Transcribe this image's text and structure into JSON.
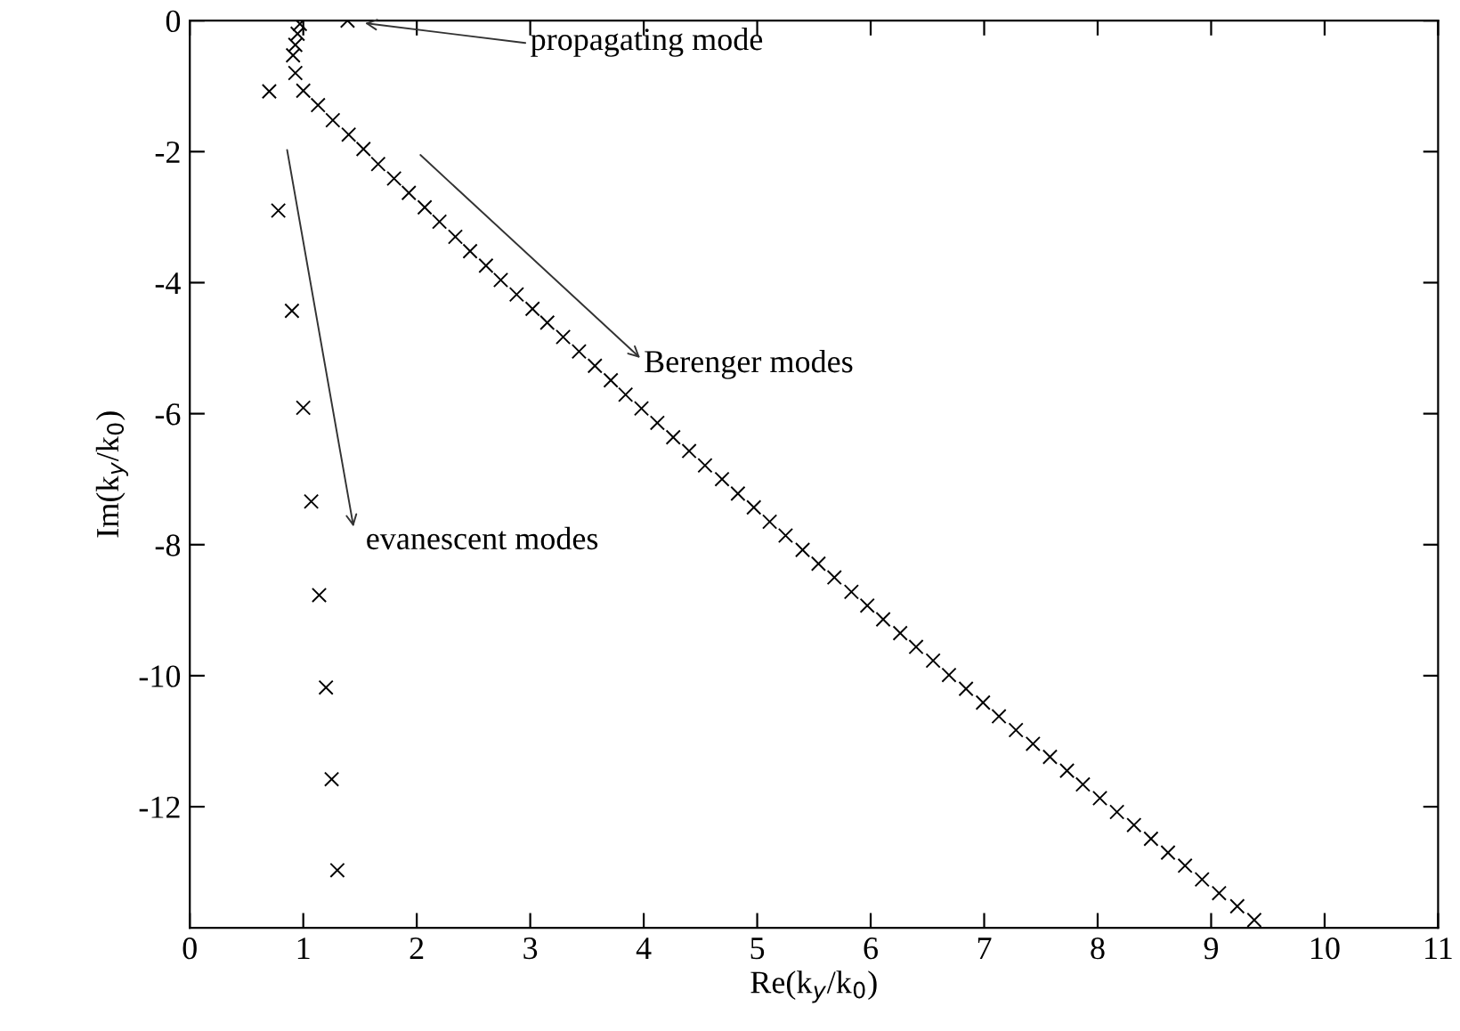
{
  "chart_data": {
    "type": "scatter",
    "xlabel": "Re(k$_{y}$/k$_{0}$)",
    "ylabel": "Im(k$_{y}$/k$_{0}$)",
    "xlim": [
      0,
      11
    ],
    "ylim": [
      -13.85,
      0
    ],
    "xticks": [
      0,
      1,
      2,
      3,
      4,
      5,
      6,
      7,
      8,
      9,
      10,
      11
    ],
    "yticks": [
      {
        "value": 0,
        "label": "0"
      },
      {
        "value": -2,
        "label": "-2"
      },
      {
        "value": -4,
        "label": "-4"
      },
      {
        "value": -6,
        "label": "-6"
      },
      {
        "value": -8,
        "label": "-8"
      },
      {
        "value": -10,
        "label": "-10"
      },
      {
        "value": -12,
        "label": "-12"
      }
    ],
    "grid": false,
    "legend": false,
    "marker": "cross",
    "series": [
      {
        "color": "#000000",
        "x": [
          1.39,
          0.97,
          0.95,
          0.93,
          0.91,
          0.93,
          1.0,
          1.13,
          1.26,
          1.4,
          1.53,
          1.66,
          1.8,
          1.93,
          2.07,
          2.2,
          2.34,
          2.47,
          2.61,
          2.74,
          2.88,
          3.02,
          3.15,
          3.29,
          3.43,
          3.57,
          3.71,
          3.84,
          3.98,
          4.12,
          4.26,
          4.4,
          4.54,
          4.69,
          4.83,
          4.97,
          5.11,
          5.25,
          5.4,
          5.54,
          5.68,
          5.83,
          5.97,
          6.11,
          6.26,
          6.4,
          6.55,
          6.69,
          6.84,
          6.99,
          7.13,
          7.28,
          7.43,
          7.58,
          7.73,
          7.87,
          8.02,
          8.17,
          8.32,
          8.47,
          8.62,
          8.77,
          8.92,
          9.07,
          9.23,
          9.38
        ],
        "values": [
          0,
          -0.05,
          -0.2,
          -0.37,
          -0.53,
          -0.8,
          -1.07,
          -1.29,
          -1.52,
          -1.74,
          -1.96,
          -2.19,
          -2.41,
          -2.63,
          -2.85,
          -3.07,
          -3.3,
          -3.52,
          -3.74,
          -3.96,
          -4.18,
          -4.4,
          -4.61,
          -4.83,
          -5.05,
          -5.27,
          -5.49,
          -5.71,
          -5.92,
          -6.14,
          -6.36,
          -6.57,
          -6.79,
          -7.0,
          -7.22,
          -7.43,
          -7.65,
          -7.86,
          -8.08,
          -8.29,
          -8.5,
          -8.72,
          -8.93,
          -9.14,
          -9.35,
          -9.56,
          -9.77,
          -9.99,
          -10.2,
          -10.41,
          -10.62,
          -10.83,
          -11.04,
          -11.24,
          -11.45,
          -11.66,
          -11.87,
          -12.08,
          -12.28,
          -12.49,
          -12.7,
          -12.9,
          -13.11,
          -13.32,
          -13.52,
          -13.73
        ]
      },
      {
        "color": "#000000",
        "x": [
          0.7,
          0.78,
          0.9,
          1.0,
          1.07,
          1.14,
          1.2,
          1.25,
          1.3
        ],
        "values": [
          -1.08,
          -2.9,
          -4.43,
          -5.91,
          -7.34,
          -8.77,
          -10.18,
          -11.58,
          -12.97
        ]
      }
    ],
    "annotations": [
      "propagating mode",
      "Berenger modes",
      "evanescent modes"
    ]
  }
}
